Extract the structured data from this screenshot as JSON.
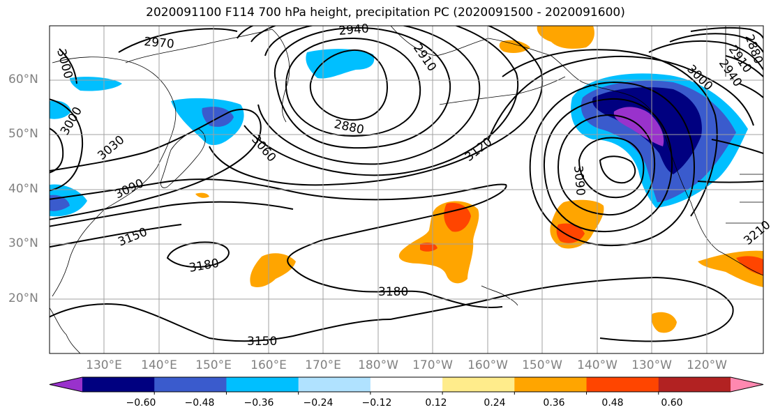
{
  "title": "2020091100 F114 700 hPa height, precipitation PC (2020091500 - 2020091600)",
  "lat_labels": [
    "60°N",
    "50°N",
    "40°N",
    "30°N",
    "20°N"
  ],
  "lon_labels": [
    "130°E",
    "140°E",
    "150°E",
    "160°E",
    "170°E",
    "180°W",
    "170°W",
    "160°W",
    "150°W",
    "140°W",
    "130°W",
    "120°W"
  ],
  "contour_labels": [
    "2970",
    "2940",
    "2910",
    "3000",
    "3000",
    "3030",
    "3060",
    "2880",
    "3120",
    "3090",
    "3090",
    "3150",
    "3180",
    "3180",
    "3150",
    "2940",
    "2910",
    "3000",
    "2880",
    "3210"
  ],
  "colorbar": {
    "ticks": [
      "−0.60",
      "−0.48",
      "−0.36",
      "−0.24",
      "−0.12",
      "0.12",
      "0.24",
      "0.36",
      "0.48",
      "0.60"
    ],
    "colors": [
      "#9932cc",
      "#000080",
      "#3a5bcd",
      "#00bfff",
      "#b0e2ff",
      "#ffffff",
      "#ffec8b",
      "#ffa500",
      "#ff4500",
      "#b22222",
      "#ff88b0"
    ]
  }
}
